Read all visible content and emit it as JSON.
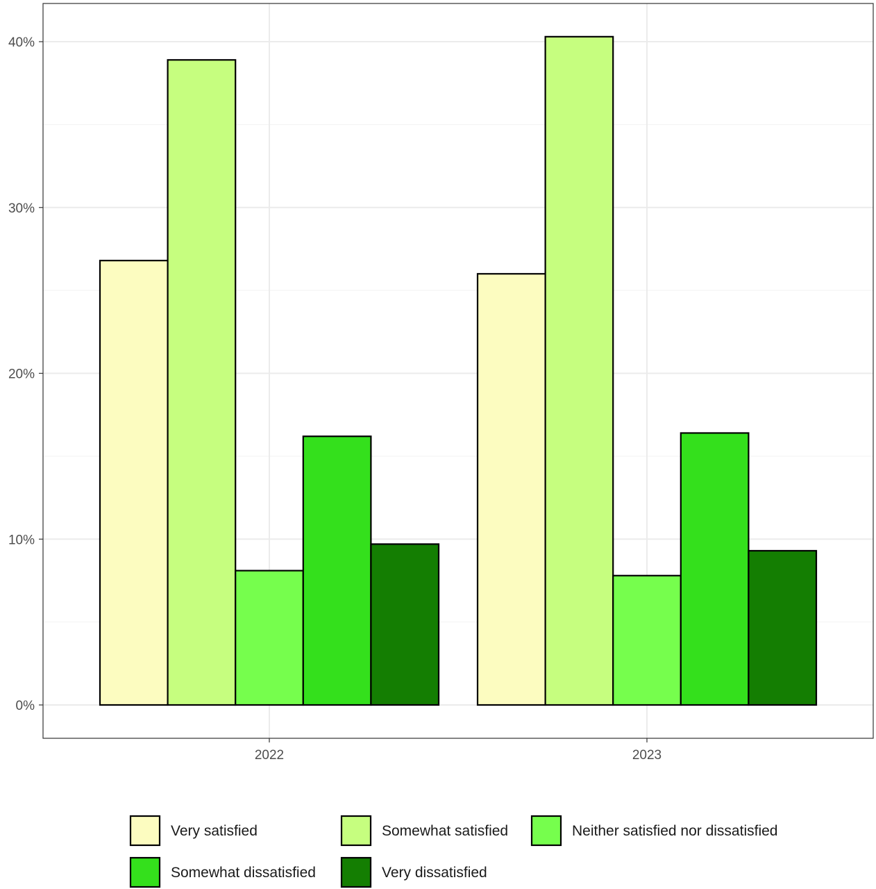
{
  "chart_data": {
    "type": "bar",
    "categories": [
      "2022",
      "2023"
    ],
    "series": [
      {
        "name": "Very satisfied",
        "color": "#FCFCC0",
        "values": [
          26.8,
          26.0
        ]
      },
      {
        "name": "Somewhat satisfied",
        "color": "#C6FE7F",
        "values": [
          38.9,
          40.3
        ]
      },
      {
        "name": "Neither satisfied nor dissatisfied",
        "color": "#76FE4D",
        "values": [
          8.1,
          7.8
        ]
      },
      {
        "name": "Somewhat dissatisfied",
        "color": "#34E01C",
        "values": [
          16.2,
          16.4
        ]
      },
      {
        "name": "Very dissatisfied",
        "color": "#147E02",
        "values": [
          9.7,
          9.3
        ]
      }
    ],
    "yticks": [
      0,
      10,
      20,
      30,
      40
    ],
    "ytick_labels": [
      "0%",
      "10%",
      "20%",
      "30%",
      "40%"
    ],
    "ylim": [
      -2,
      42.5
    ],
    "grid": true,
    "legend_position": "bottom",
    "xlabel": "",
    "ylabel": "",
    "title": ""
  }
}
